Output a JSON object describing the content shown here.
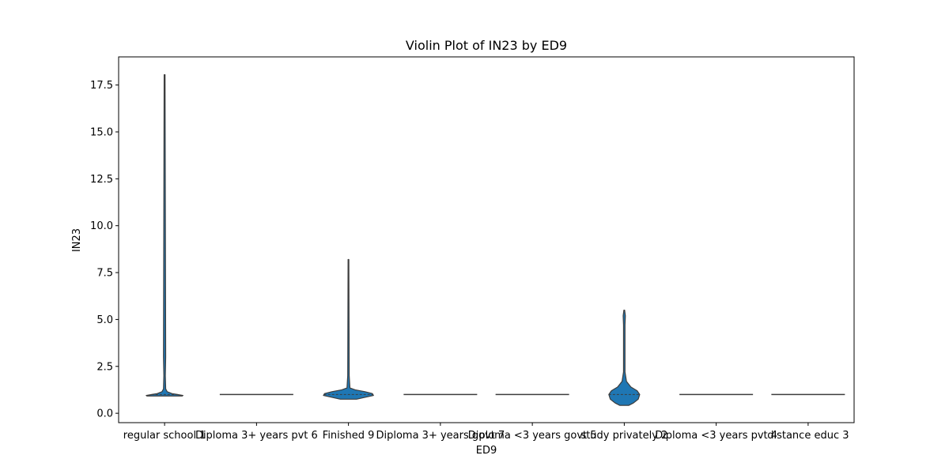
{
  "chart_data": {
    "type": "violin",
    "title": "Violin Plot of IN23 by ED9",
    "xlabel": "ED9",
    "ylabel": "IN23",
    "ylim": [
      -0.5,
      19
    ],
    "yticks": [
      0.0,
      2.5,
      5.0,
      7.5,
      10.0,
      12.5,
      15.0,
      17.5
    ],
    "ytick_labels": [
      "0.0",
      "2.5",
      "5.0",
      "7.5",
      "10.0",
      "12.5",
      "15.0",
      "17.5"
    ],
    "categories": [
      "regular school 1",
      "Diploma 3+ years pvt 6",
      "Finished 9",
      "Diploma 3+ years govt 7",
      "Diploma <3 years govt 5",
      "study privately 2",
      "Diploma <3 years pvt 4",
      "distance educ 3"
    ],
    "violins": [
      {
        "category": "regular school 1",
        "min": 0.92,
        "max": 18.05,
        "median": 1.0,
        "profile": [
          [
            0.92,
            0.48
          ],
          [
            0.95,
            0.5
          ],
          [
            1.0,
            0.35
          ],
          [
            1.05,
            0.2
          ],
          [
            1.15,
            0.07
          ],
          [
            1.3,
            0.03
          ],
          [
            2.0,
            0.02
          ],
          [
            3.0,
            0.03
          ],
          [
            18.05,
            0.012
          ]
        ]
      },
      {
        "category": "Diploma 3+ years pvt 6",
        "min": 1.0,
        "max": 1.0,
        "median": 1.0,
        "profile": []
      },
      {
        "category": "Finished 9",
        "min": 0.75,
        "max": 8.2,
        "median": 1.0,
        "profile": [
          [
            0.75,
            0.22
          ],
          [
            0.85,
            0.45
          ],
          [
            0.95,
            0.68
          ],
          [
            1.05,
            0.65
          ],
          [
            1.15,
            0.45
          ],
          [
            1.25,
            0.18
          ],
          [
            1.35,
            0.04
          ],
          [
            2.0,
            0.02
          ],
          [
            8.2,
            0.01
          ]
        ]
      },
      {
        "category": "Diploma 3+ years govt 7",
        "min": 1.0,
        "max": 1.0,
        "median": 1.0,
        "profile": []
      },
      {
        "category": "Diploma <3 years govt 5",
        "min": 1.0,
        "max": 1.0,
        "median": 1.0,
        "profile": []
      },
      {
        "category": "study privately 2",
        "min": 0.42,
        "max": 5.5,
        "median": 1.0,
        "profile": [
          [
            0.42,
            0.12
          ],
          [
            0.55,
            0.25
          ],
          [
            0.75,
            0.38
          ],
          [
            1.0,
            0.42
          ],
          [
            1.2,
            0.35
          ],
          [
            1.4,
            0.18
          ],
          [
            1.7,
            0.06
          ],
          [
            2.2,
            0.02
          ],
          [
            4.7,
            0.02
          ],
          [
            5.2,
            0.03
          ],
          [
            5.5,
            0.01
          ]
        ]
      },
      {
        "category": "Diploma <3 years pvt 4",
        "min": 1.0,
        "max": 1.0,
        "median": 1.0,
        "profile": []
      },
      {
        "category": "distance educ 3",
        "min": 1.0,
        "max": 1.0,
        "median": 1.0,
        "profile": []
      }
    ],
    "colors": {
      "fill": "#1f77b4",
      "edge": "#3d3d3d",
      "axes": "#000000"
    },
    "grid": false,
    "legend": "none"
  }
}
